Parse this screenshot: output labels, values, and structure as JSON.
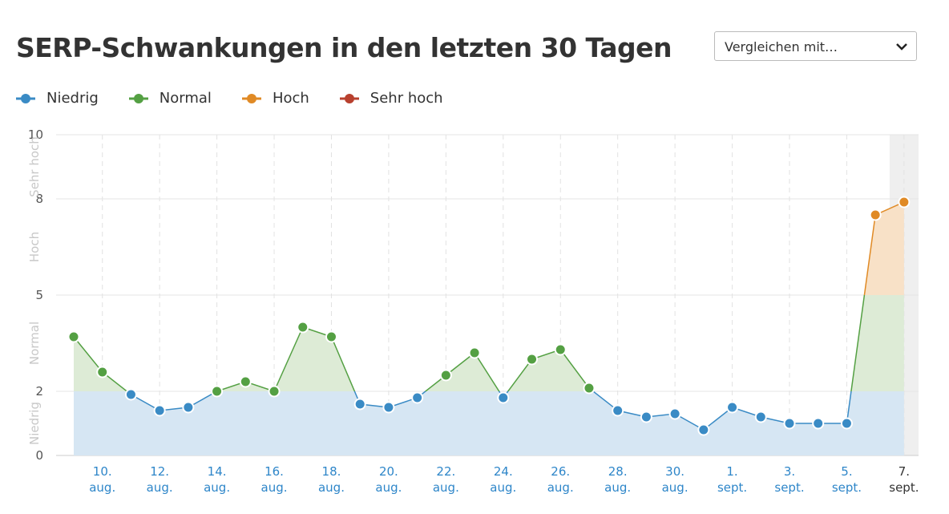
{
  "compare_dropdown": "Vergleichen mit…",
  "chart_data": {
    "type": "line",
    "title": "SERP-Schwankungen in den letzten 30 Tagen",
    "levels": [
      {
        "name": "Niedrig",
        "color": "#3a8bc5",
        "fill": "#d6e6f3",
        "from": 0,
        "to": 2
      },
      {
        "name": "Normal",
        "color": "#54a043",
        "fill": "#ddebd6",
        "from": 2,
        "to": 5
      },
      {
        "name": "Hoch",
        "color": "#e08a25",
        "fill": "#f8e1c7",
        "from": 5,
        "to": 8
      },
      {
        "name": "Sehr hoch",
        "color": "#b8402e",
        "fill": "#f3d3cd",
        "from": 8,
        "to": 10
      }
    ],
    "categories": [
      null,
      "10.\naug.",
      null,
      "12.\naug.",
      null,
      "14.\naug.",
      null,
      "16.\naug.",
      null,
      "18.\naug.",
      null,
      "20.\naug.",
      null,
      "22.\naug.",
      null,
      "24.\naug.",
      null,
      "26.\naug.",
      null,
      "28.\naug.",
      null,
      "30.\naug.",
      null,
      "1.\nsept.",
      null,
      "3.\nsept.",
      null,
      "5.\nsept.",
      null,
      "7.\nsept."
    ],
    "values": [
      3.7,
      2.6,
      1.9,
      1.4,
      1.5,
      2.0,
      2.3,
      2.0,
      4.0,
      3.7,
      1.6,
      1.5,
      1.8,
      2.5,
      3.2,
      1.8,
      3.0,
      3.3,
      2.1,
      1.4,
      1.2,
      1.3,
      0.8,
      1.5,
      1.2,
      1.0,
      1.0,
      1.0,
      7.5,
      7.9
    ],
    "ylim": [
      0,
      10
    ],
    "yticks": [
      0,
      2,
      5,
      8,
      10
    ],
    "grid": true
  }
}
